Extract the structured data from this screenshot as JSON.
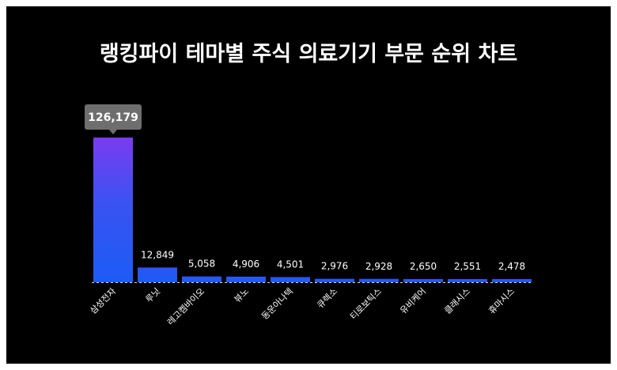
{
  "chart_data": {
    "type": "bar",
    "title": "랭킹파이 테마별 주식 의료기기 부문 순위 차트",
    "categories": [
      "삼성전자",
      "루닛",
      "레고켐바이오",
      "뷰노",
      "동운아나텍",
      "큐렉소",
      "티로보틱스",
      "유비케어",
      "클래시스",
      "휴마시스"
    ],
    "values": [
      126179,
      12849,
      5058,
      4906,
      4501,
      2976,
      2928,
      2650,
      2551,
      2478
    ],
    "value_labels": [
      "126,179",
      "12,849",
      "5,058",
      "4,906",
      "4,501",
      "2,976",
      "2,928",
      "2,650",
      "2,551",
      "2,478"
    ],
    "highlight_index": 0,
    "ylim": [
      0,
      126179
    ],
    "grid": false,
    "legend": "none",
    "xlabel": "",
    "ylabel": ""
  },
  "colors": {
    "background": "#000000",
    "bar_top": "#7a3cf0",
    "bar_bottom": "#1c5cf4",
    "bar": "#1e5af5",
    "tooltip": "#6e6e6e",
    "text": "#ffffff"
  }
}
